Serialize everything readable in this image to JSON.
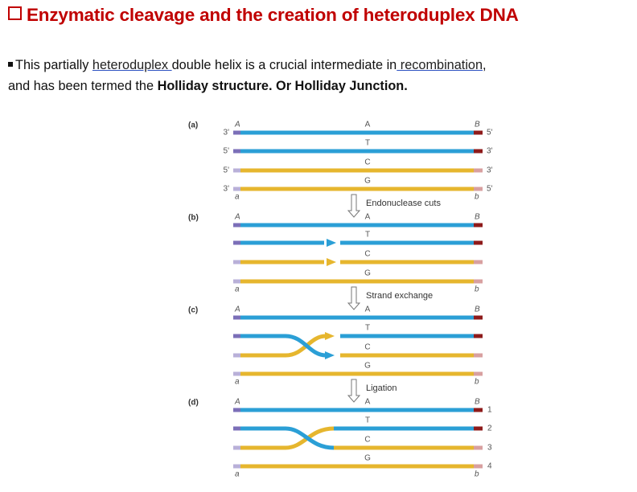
{
  "header": {
    "title": "Enzymatic cleavage and the creation of heteroduplex DNA"
  },
  "body": {
    "lines": [
      [
        {
          "text": "This partially ",
          "style": "plain"
        },
        {
          "text": "heteroduplex ",
          "style": "link"
        },
        {
          "text": "double helix is a crucial intermediate in",
          "style": "plain"
        },
        {
          "text": " recombination",
          "style": "link"
        },
        {
          "text": ",",
          "style": "plain"
        }
      ],
      [
        {
          "text": "and has been termed the ",
          "style": "plain"
        },
        {
          "text": "Holliday structure. Or Holliday Junction.",
          "style": "bold"
        }
      ]
    ]
  },
  "diagram": {
    "panels": [
      {
        "label": "(a)",
        "top_left": "A",
        "top_right": "B",
        "bottom_left": "a",
        "bottom_right": "b",
        "strand_letters": [
          "A",
          "T",
          "C",
          "G"
        ],
        "left_ends": [
          "3'",
          "5'",
          "5'",
          "3'"
        ],
        "right_ends": [
          "5'",
          "3'",
          "3'",
          "5'"
        ]
      },
      {
        "label": "(b)",
        "top_left": "A",
        "top_right": "B",
        "bottom_left": "a",
        "bottom_right": "b",
        "strand_letters": [
          "A",
          "T",
          "C",
          "G"
        ]
      },
      {
        "label": "(c)",
        "top_left": "A",
        "top_right": "B",
        "bottom_left": "a",
        "bottom_right": "b",
        "strand_letters": [
          "A",
          "T",
          "C",
          "G"
        ]
      },
      {
        "label": "(d)",
        "top_left": "A",
        "top_right": "B",
        "bottom_left": "a",
        "bottom_right": "b",
        "strand_letters": [
          "A",
          "T",
          "C",
          "G"
        ],
        "right_numbers": [
          "1",
          "2",
          "3",
          "4"
        ]
      }
    ],
    "steps": [
      "Endonuclease cuts",
      "Strand exchange",
      "Ligation"
    ]
  }
}
